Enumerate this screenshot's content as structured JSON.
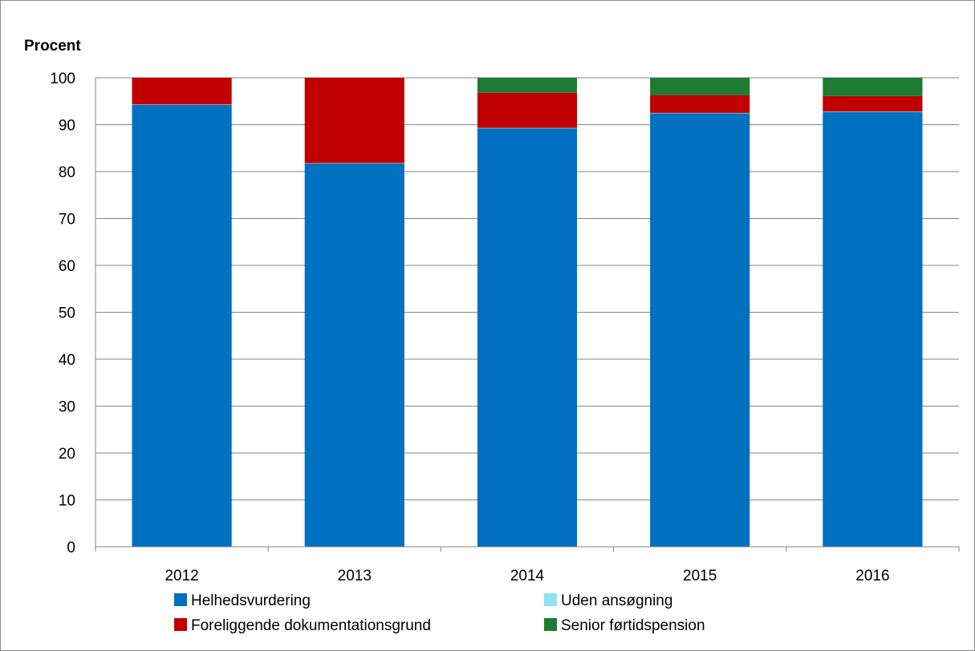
{
  "chart_data": {
    "type": "bar",
    "stacked": true,
    "title": "",
    "xlabel": "",
    "ylabel": "Procent",
    "ylim": [
      0,
      100
    ],
    "yticks": [
      0,
      10,
      20,
      30,
      40,
      50,
      60,
      70,
      80,
      90,
      100
    ],
    "categories": [
      "2012",
      "2013",
      "2014",
      "2015",
      "2016"
    ],
    "grid": true,
    "legend_position": "bottom",
    "series": [
      {
        "name": "Helhedsvurdering",
        "color": "#0070C0",
        "values": [
          94.2,
          81.7,
          89.2,
          92.4,
          92.7
        ]
      },
      {
        "name": "Uden ansøgning",
        "color": "#8DE3F5",
        "values": [
          0.1,
          0.1,
          0.1,
          0.1,
          0.1
        ]
      },
      {
        "name": "Foreliggende dokumentationsgrund",
        "color": "#C00000",
        "values": [
          5.7,
          18.2,
          7.5,
          3.8,
          3.3
        ]
      },
      {
        "name": "Senior førtidspension",
        "color": "#1E7B33",
        "values": [
          0,
          0,
          3.2,
          3.7,
          3.9
        ]
      }
    ]
  }
}
